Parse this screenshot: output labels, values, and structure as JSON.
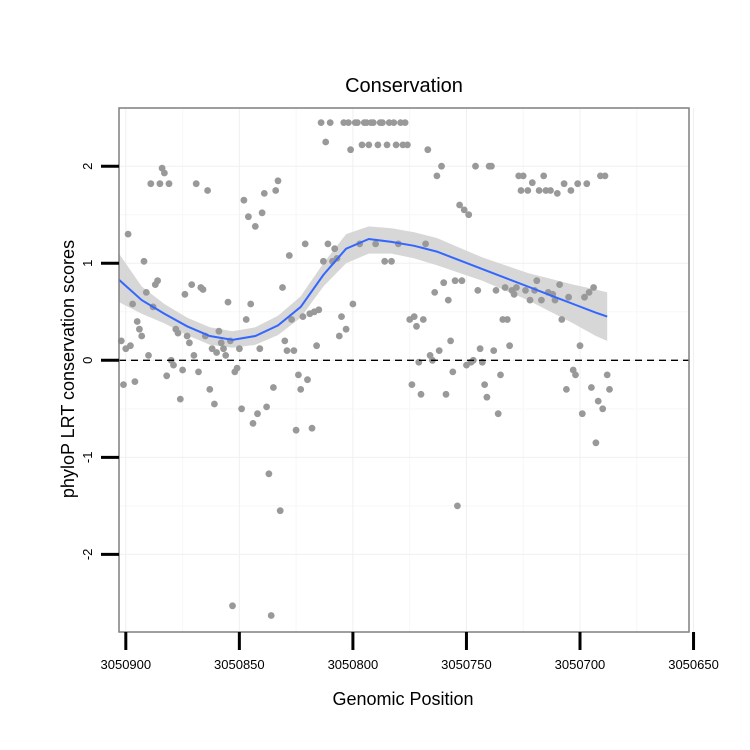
{
  "chart_data": {
    "type": "scatter",
    "title": "Conservation",
    "xlabel": "Genomic Position",
    "ylabel": "phyloP LRT conservation scores",
    "x_reversed": true,
    "xlim": [
      3050903,
      3050652
    ],
    "ylim": [
      -2.8,
      2.6
    ],
    "x_ticks": [
      3050900,
      3050850,
      3050800,
      3050750,
      3050700,
      3050650
    ],
    "x_tick_labels": [
      "3050900",
      "3050850",
      "3050800",
      "3050750",
      "3050700",
      "3050650"
    ],
    "y_ticks": [
      2,
      1,
      0,
      -1,
      -2
    ],
    "y_tick_labels": [
      "2",
      "1",
      "0",
      "-1",
      "-2"
    ],
    "reference_line": {
      "y": 0,
      "style": "dashed"
    },
    "grid": true,
    "colors": {
      "points": "#999999",
      "smooth": "#3366ff",
      "ribbon": "#d3d3d3",
      "panel_border": "#7f7f7f",
      "reference": "#000000"
    },
    "points": [
      [
        3050902,
        0.2
      ],
      [
        3050901,
        -0.25
      ],
      [
        3050900,
        0.12
      ],
      [
        3050899,
        1.3
      ],
      [
        3050898,
        0.15
      ],
      [
        3050897,
        0.58
      ],
      [
        3050896,
        -0.22
      ],
      [
        3050895,
        0.4
      ],
      [
        3050894,
        0.32
      ],
      [
        3050893,
        0.25
      ],
      [
        3050892,
        1.02
      ],
      [
        3050891,
        0.7
      ],
      [
        3050890,
        0.05
      ],
      [
        3050889,
        1.82
      ],
      [
        3050888,
        0.55
      ],
      [
        3050887,
        0.78
      ],
      [
        3050886,
        0.82
      ],
      [
        3050885,
        1.82
      ],
      [
        3050884,
        1.98
      ],
      [
        3050883,
        1.93
      ],
      [
        3050882,
        -0.16
      ],
      [
        3050881,
        1.82
      ],
      [
        3050880,
        0.0
      ],
      [
        3050879,
        -0.05
      ],
      [
        3050878,
        0.32
      ],
      [
        3050877,
        0.28
      ],
      [
        3050876,
        -0.4
      ],
      [
        3050875,
        -0.1
      ],
      [
        3050874,
        0.68
      ],
      [
        3050873,
        0.25
      ],
      [
        3050872,
        0.18
      ],
      [
        3050871,
        0.78
      ],
      [
        3050870,
        0.05
      ],
      [
        3050869,
        1.82
      ],
      [
        3050868,
        -0.12
      ],
      [
        3050867,
        0.75
      ],
      [
        3050866,
        0.73
      ],
      [
        3050865,
        0.25
      ],
      [
        3050864,
        1.75
      ],
      [
        3050863,
        -0.3
      ],
      [
        3050862,
        0.12
      ],
      [
        3050861,
        -0.45
      ],
      [
        3050860,
        0.08
      ],
      [
        3050859,
        0.3
      ],
      [
        3050858,
        0.18
      ],
      [
        3050857,
        0.12
      ],
      [
        3050856,
        0.05
      ],
      [
        3050855,
        0.6
      ],
      [
        3050854,
        0.2
      ],
      [
        3050853,
        -2.53
      ],
      [
        3050852,
        -0.12
      ],
      [
        3050851,
        -0.08
      ],
      [
        3050850,
        0.12
      ],
      [
        3050849,
        -0.5
      ],
      [
        3050848,
        1.65
      ],
      [
        3050847,
        0.42
      ],
      [
        3050846,
        1.48
      ],
      [
        3050845,
        0.58
      ],
      [
        3050844,
        -0.65
      ],
      [
        3050843,
        1.38
      ],
      [
        3050842,
        -0.55
      ],
      [
        3050841,
        0.12
      ],
      [
        3050840,
        1.52
      ],
      [
        3050839,
        1.72
      ],
      [
        3050838,
        -0.48
      ],
      [
        3050837,
        -1.17
      ],
      [
        3050836,
        -2.63
      ],
      [
        3050835,
        -0.28
      ],
      [
        3050834,
        1.75
      ],
      [
        3050833,
        1.85
      ],
      [
        3050832,
        -1.55
      ],
      [
        3050831,
        0.75
      ],
      [
        3050830,
        0.2
      ],
      [
        3050829,
        0.1
      ],
      [
        3050828,
        1.08
      ],
      [
        3050827,
        0.42
      ],
      [
        3050826,
        0.1
      ],
      [
        3050825,
        -0.72
      ],
      [
        3050824,
        -0.15
      ],
      [
        3050823,
        -0.3
      ],
      [
        3050822,
        0.45
      ],
      [
        3050821,
        1.2
      ],
      [
        3050820,
        -0.2
      ],
      [
        3050819,
        0.48
      ],
      [
        3050818,
        -0.7
      ],
      [
        3050817,
        0.5
      ],
      [
        3050816,
        0.15
      ],
      [
        3050815,
        0.52
      ],
      [
        3050814,
        2.45
      ],
      [
        3050813,
        1.02
      ],
      [
        3050812,
        2.25
      ],
      [
        3050811,
        1.2
      ],
      [
        3050810,
        2.45
      ],
      [
        3050809,
        1.02
      ],
      [
        3050808,
        1.15
      ],
      [
        3050807,
        1.05
      ],
      [
        3050806,
        0.25
      ],
      [
        3050805,
        0.45
      ],
      [
        3050804,
        2.45
      ],
      [
        3050803,
        0.32
      ],
      [
        3050802,
        2.45
      ],
      [
        3050801,
        2.17
      ],
      [
        3050800,
        0.58
      ],
      [
        3050799,
        2.45
      ],
      [
        3050798,
        2.45
      ],
      [
        3050797,
        1.2
      ],
      [
        3050796,
        2.22
      ],
      [
        3050795,
        2.45
      ],
      [
        3050794,
        2.45
      ],
      [
        3050793,
        2.22
      ],
      [
        3050792,
        2.45
      ],
      [
        3050791,
        2.45
      ],
      [
        3050790,
        1.2
      ],
      [
        3050789,
        2.22
      ],
      [
        3050788,
        2.45
      ],
      [
        3050787,
        2.45
      ],
      [
        3050786,
        1.02
      ],
      [
        3050785,
        2.22
      ],
      [
        3050784,
        2.45
      ],
      [
        3050783,
        1.02
      ],
      [
        3050782,
        2.45
      ],
      [
        3050781,
        2.22
      ],
      [
        3050780,
        1.2
      ],
      [
        3050779,
        2.45
      ],
      [
        3050778,
        2.22
      ],
      [
        3050777,
        2.45
      ],
      [
        3050776,
        2.22
      ],
      [
        3050775,
        0.42
      ],
      [
        3050774,
        -0.25
      ],
      [
        3050773,
        0.45
      ],
      [
        3050772,
        0.35
      ],
      [
        3050771,
        -0.02
      ],
      [
        3050770,
        -0.35
      ],
      [
        3050769,
        0.42
      ],
      [
        3050768,
        1.2
      ],
      [
        3050767,
        2.17
      ],
      [
        3050766,
        0.05
      ],
      [
        3050765,
        0.0
      ],
      [
        3050764,
        0.7
      ],
      [
        3050763,
        1.9
      ],
      [
        3050762,
        0.1
      ],
      [
        3050761,
        2.0
      ],
      [
        3050760,
        0.8
      ],
      [
        3050759,
        -0.35
      ],
      [
        3050758,
        0.62
      ],
      [
        3050757,
        0.2
      ],
      [
        3050756,
        -0.12
      ],
      [
        3050755,
        0.82
      ],
      [
        3050754,
        -1.5
      ],
      [
        3050753,
        1.6
      ],
      [
        3050752,
        0.82
      ],
      [
        3050751,
        1.55
      ],
      [
        3050750,
        -0.05
      ],
      [
        3050749,
        1.5
      ],
      [
        3050748,
        -0.02
      ],
      [
        3050747,
        0.0
      ],
      [
        3050746,
        2.0
      ],
      [
        3050745,
        0.72
      ],
      [
        3050744,
        0.12
      ],
      [
        3050743,
        -0.02
      ],
      [
        3050742,
        -0.25
      ],
      [
        3050741,
        -0.38
      ],
      [
        3050740,
        2.0
      ],
      [
        3050739,
        2.0
      ],
      [
        3050738,
        0.1
      ],
      [
        3050737,
        0.72
      ],
      [
        3050736,
        -0.55
      ],
      [
        3050735,
        -0.15
      ],
      [
        3050734,
        0.42
      ],
      [
        3050733,
        0.75
      ],
      [
        3050732,
        0.42
      ],
      [
        3050731,
        0.15
      ],
      [
        3050730,
        0.72
      ],
      [
        3050729,
        0.68
      ],
      [
        3050728,
        0.75
      ],
      [
        3050727,
        1.9
      ],
      [
        3050726,
        1.75
      ],
      [
        3050725,
        1.9
      ],
      [
        3050724,
        0.72
      ],
      [
        3050723,
        1.75
      ],
      [
        3050722,
        0.62
      ],
      [
        3050721,
        1.83
      ],
      [
        3050720,
        0.72
      ],
      [
        3050719,
        0.82
      ],
      [
        3050718,
        1.75
      ],
      [
        3050717,
        0.62
      ],
      [
        3050716,
        1.9
      ],
      [
        3050715,
        1.75
      ],
      [
        3050714,
        0.7
      ],
      [
        3050713,
        1.75
      ],
      [
        3050712,
        0.68
      ],
      [
        3050711,
        0.62
      ],
      [
        3050710,
        1.72
      ],
      [
        3050709,
        0.78
      ],
      [
        3050708,
        0.42
      ],
      [
        3050707,
        1.82
      ],
      [
        3050706,
        -0.3
      ],
      [
        3050705,
        0.65
      ],
      [
        3050704,
        1.75
      ],
      [
        3050703,
        -0.1
      ],
      [
        3050702,
        -0.15
      ],
      [
        3050701,
        1.82
      ],
      [
        3050700,
        0.15
      ],
      [
        3050699,
        -0.55
      ],
      [
        3050698,
        0.65
      ],
      [
        3050697,
        1.82
      ],
      [
        3050696,
        0.7
      ],
      [
        3050695,
        -0.28
      ],
      [
        3050694,
        0.75
      ],
      [
        3050693,
        -0.85
      ],
      [
        3050692,
        -0.42
      ],
      [
        3050691,
        1.9
      ],
      [
        3050690,
        -0.5
      ],
      [
        3050689,
        1.9
      ],
      [
        3050688,
        -0.15
      ],
      [
        3050687,
        -0.3
      ]
    ],
    "smooth": [
      [
        3050903,
        0.83,
        0.6,
        1.1
      ],
      [
        3050893,
        0.62,
        0.48,
        0.76
      ],
      [
        3050883,
        0.48,
        0.38,
        0.58
      ],
      [
        3050873,
        0.35,
        0.26,
        0.44
      ],
      [
        3050863,
        0.25,
        0.16,
        0.34
      ],
      [
        3050853,
        0.21,
        0.13,
        0.3
      ],
      [
        3050843,
        0.25,
        0.16,
        0.34
      ],
      [
        3050833,
        0.36,
        0.26,
        0.46
      ],
      [
        3050823,
        0.55,
        0.44,
        0.66
      ],
      [
        3050813,
        0.88,
        0.76,
        1.0
      ],
      [
        3050803,
        1.15,
        1.0,
        1.3
      ],
      [
        3050793,
        1.25,
        1.1,
        1.38
      ],
      [
        3050783,
        1.22,
        1.1,
        1.36
      ],
      [
        3050773,
        1.18,
        1.05,
        1.32
      ],
      [
        3050763,
        1.12,
        0.98,
        1.26
      ],
      [
        3050753,
        1.03,
        0.9,
        1.16
      ],
      [
        3050743,
        0.94,
        0.82,
        1.06
      ],
      [
        3050733,
        0.85,
        0.72,
        0.98
      ],
      [
        3050723,
        0.76,
        0.62,
        0.9
      ],
      [
        3050713,
        0.67,
        0.5,
        0.84
      ],
      [
        3050703,
        0.58,
        0.38,
        0.78
      ],
      [
        3050693,
        0.49,
        0.25,
        0.73
      ],
      [
        3050688,
        0.45,
        0.2,
        0.7
      ]
    ]
  }
}
